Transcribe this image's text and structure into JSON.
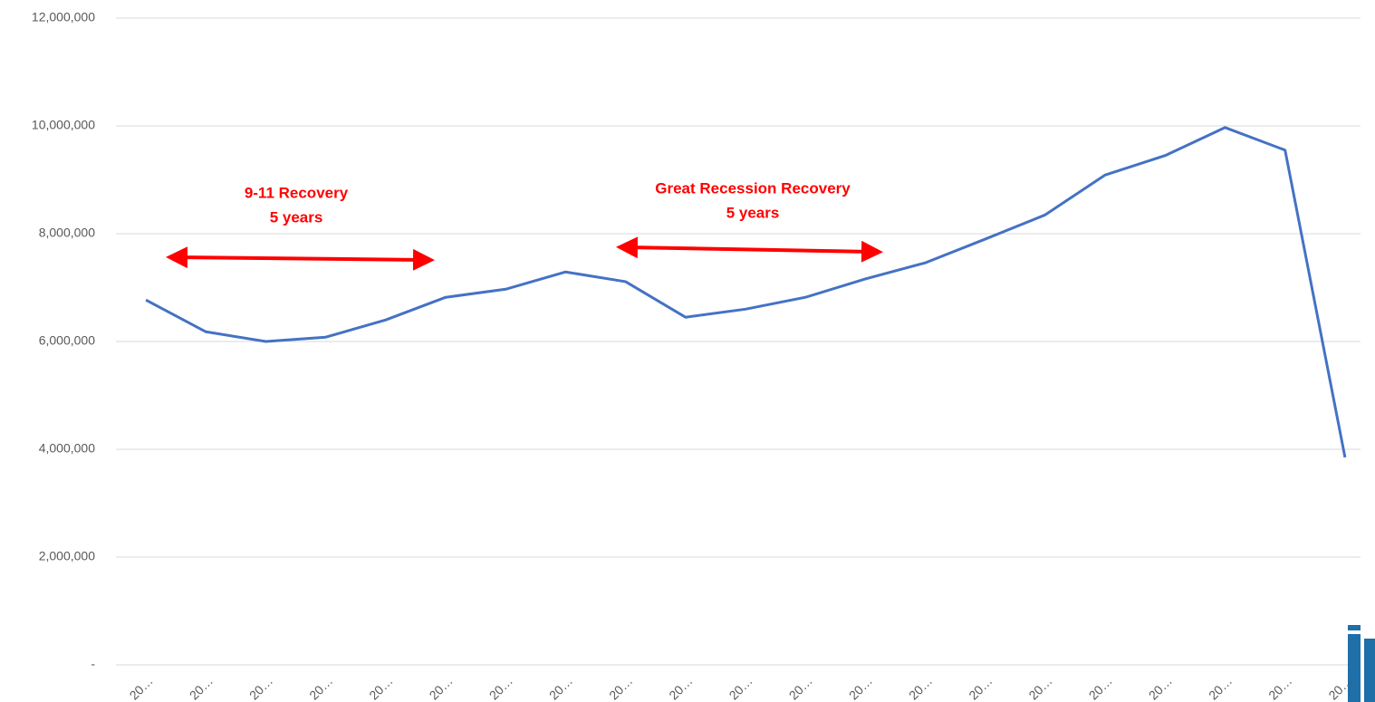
{
  "chart_data": {
    "type": "line",
    "categories": [
      "20…",
      "20…",
      "20…",
      "20…",
      "20…",
      "20…",
      "20…",
      "20…",
      "20…",
      "20…",
      "20…",
      "20…",
      "20…",
      "20…",
      "20…",
      "20…",
      "20…",
      "20…",
      "20…",
      "20…",
      "20…"
    ],
    "series": [
      {
        "color": "#4472c4",
        "values": [
          6770000,
          6180000,
          6000000,
          6080000,
          6400000,
          6820000,
          6970000,
          7290000,
          7110000,
          6450000,
          6600000,
          6820000,
          7160000,
          7460000,
          7900000,
          8350000,
          9090000,
          9450000,
          9970000,
          9550000,
          3850000
        ]
      }
    ],
    "ylim": [
      0,
      12000000
    ],
    "yticks": [
      {
        "value": 0,
        "label": "-"
      },
      {
        "value": 2000000,
        "label": "2,000,000"
      },
      {
        "value": 4000000,
        "label": "4,000,000"
      },
      {
        "value": 6000000,
        "label": "6,000,000"
      },
      {
        "value": 8000000,
        "label": "8,000,000"
      },
      {
        "value": 10000000,
        "label": "10,000,000"
      },
      {
        "value": 12000000,
        "label": "12,000,000"
      }
    ],
    "grid": true,
    "annotations": [
      {
        "lines": [
          "9-11 Recovery",
          "5 years"
        ],
        "color": "#ff0000"
      },
      {
        "lines": [
          "Great Recession Recovery",
          "5 years"
        ],
        "color": "#ff0000"
      }
    ]
  }
}
